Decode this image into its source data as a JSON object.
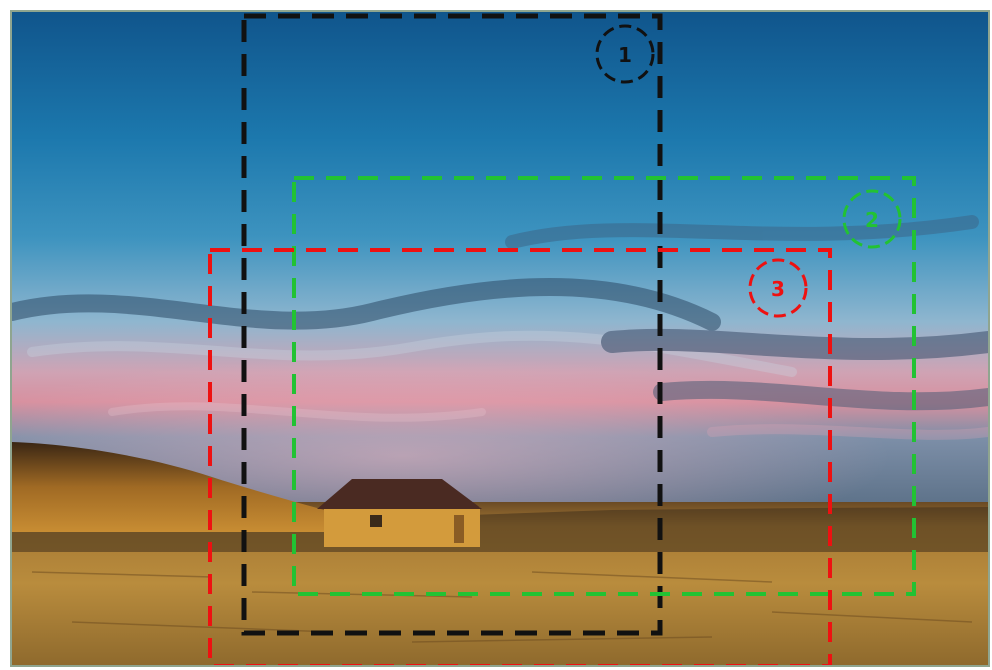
{
  "annotations": {
    "crops": [
      {
        "label": "1",
        "color": "#111111"
      },
      {
        "label": "2",
        "color": "#22c233"
      },
      {
        "label": "3",
        "color": "#ee1111"
      }
    ]
  },
  "colors": {
    "sky_top": "#16639a",
    "sky_mid": "#2f8ab8",
    "horizon_pink": "#d79aa8",
    "field_gold": "#b78a3a",
    "house_wall": "#d39b3c",
    "roof": "#4a2a22"
  }
}
